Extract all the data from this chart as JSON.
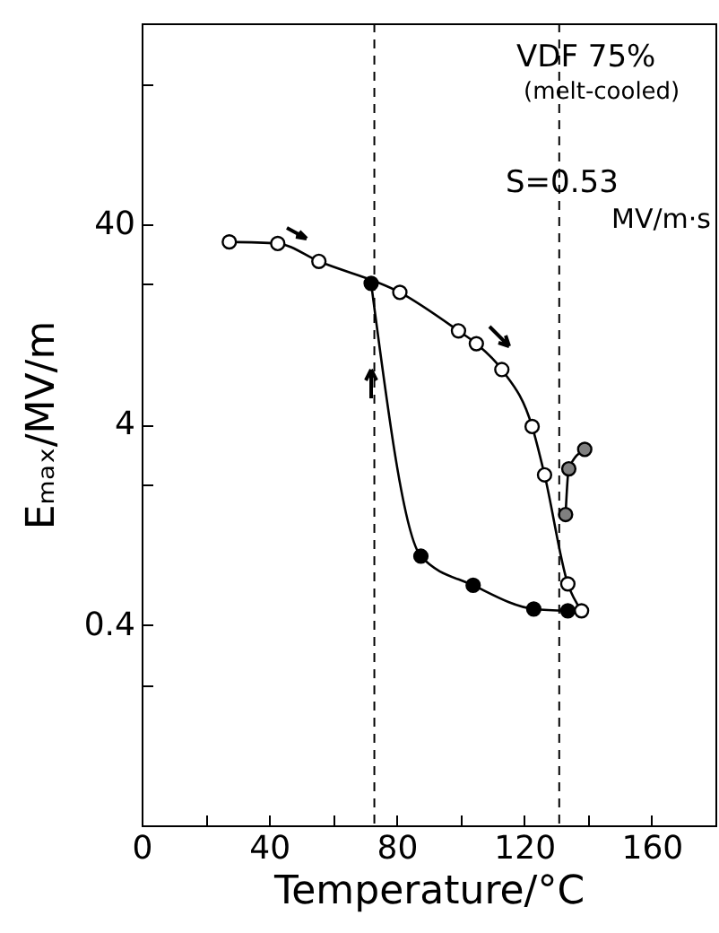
{
  "chart_data": {
    "type": "line",
    "xlabel": "Temperature/°C",
    "ylabel": "Eₘₐₓ/MV/m",
    "xlim": [
      0,
      180
    ],
    "xticks": [
      0,
      {
        "value": 20,
        "label": null
      },
      40,
      {
        "value": 60,
        "label": null
      },
      80,
      {
        "value": 100,
        "label": null
      },
      120,
      {
        "value": 140,
        "label": null
      },
      160
    ],
    "ylim": [
      0.04,
      400
    ],
    "yticks": [
      {
        "value": 0.2,
        "label": null
      },
      0.4,
      {
        "value": 2,
        "label": null
      },
      4,
      {
        "value": 20,
        "label": null
      },
      40,
      {
        "value": 200,
        "label": null
      }
    ],
    "log": "y",
    "marker": "circle",
    "series": [
      {
        "color": "#ffffff",
        "x": [
          27.5,
          42.7,
          55.6,
          81,
          99.4,
          105,
          113,
          122.5,
          126.4,
          133.7,
          138
        ],
        "values": [
          32.5,
          31.9,
          26,
          18.2,
          11.7,
          10.1,
          7.5,
          3.9,
          2.24,
          0.64,
          0.47
        ]
      },
      {
        "color": "#000000",
        "x": [
          72,
          87.6,
          104,
          123,
          133.7
        ],
        "values": [
          20.2,
          0.88,
          0.63,
          0.48,
          0.47
        ]
      },
      {
        "color": "#808080",
        "x": [
          133,
          134,
          139
        ],
        "values": [
          1.42,
          2.4,
          3.0
        ]
      }
    ],
    "ref_lines": [
      {
        "axis": "x",
        "value": 73,
        "line_style": "dashed"
      },
      {
        "axis": "x",
        "value": 131,
        "line_style": "dashed"
      }
    ],
    "annotations": [
      "VDF 75%",
      "(melt-cooled)",
      "S=0.53",
      "MV/m·s"
    ]
  }
}
